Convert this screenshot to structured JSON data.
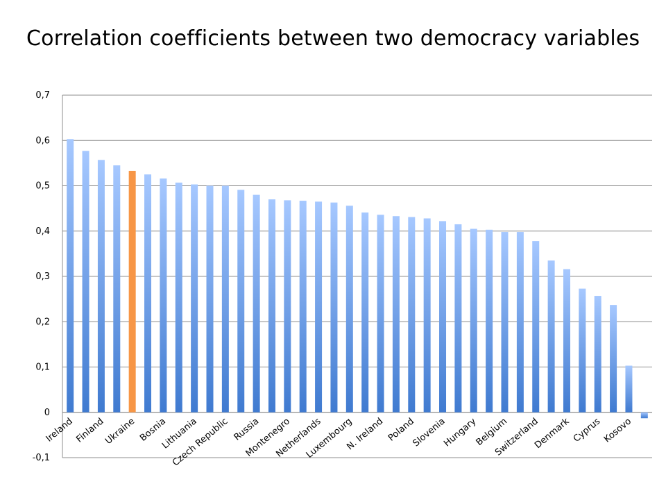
{
  "slide": {
    "title": "Correlation coefficients between two democracy variables"
  },
  "chart_data": {
    "type": "bar",
    "title": "Correlation coefficients between two democracy variables",
    "xlabel": "",
    "ylabel": "",
    "ylim": [
      -0.1,
      0.7
    ],
    "yticks": [
      "0,7",
      "0,6",
      "0,5",
      "0,4",
      "0,3",
      "0,2",
      "0,1",
      "0",
      "-0,1"
    ],
    "ytick_values": [
      0.7,
      0.6,
      0.5,
      0.4,
      0.3,
      0.2,
      0.1,
      0,
      -0.1
    ],
    "grid": true,
    "legend": "none",
    "categories": [
      "Ireland",
      "",
      "Finland",
      "",
      "Ukraine",
      "",
      "Bosnia",
      "",
      "Lithuania",
      "",
      "Czech Republic",
      "",
      "Russia",
      "",
      "Montenegro",
      "",
      "Netherlands",
      "",
      "Luxembourg",
      "",
      "N. Ireland",
      "",
      "Poland",
      "",
      "Slovenia",
      "",
      "Hungary",
      "",
      "Belgium",
      "",
      "Switzerland",
      "",
      "Denmark",
      "",
      "Cyprus",
      "",
      "Kosovo",
      ""
    ],
    "values": [
      0.603,
      0.577,
      0.557,
      0.545,
      0.533,
      0.525,
      0.516,
      0.507,
      0.503,
      0.5,
      0.5,
      0.491,
      0.48,
      0.47,
      0.468,
      0.467,
      0.465,
      0.463,
      0.456,
      0.441,
      0.436,
      0.433,
      0.431,
      0.428,
      0.422,
      0.415,
      0.405,
      0.403,
      0.398,
      0.398,
      0.378,
      0.335,
      0.316,
      0.273,
      0.257,
      0.237,
      0.103,
      -0.013
    ],
    "colors": {
      "bar_top": "#a6c8ff",
      "bar_bottom": "#3f7ad0",
      "highlight": "#f79646",
      "grid": "#8c8c8c",
      "axis": "#8c8c8c"
    },
    "highlight_index": 4
  }
}
